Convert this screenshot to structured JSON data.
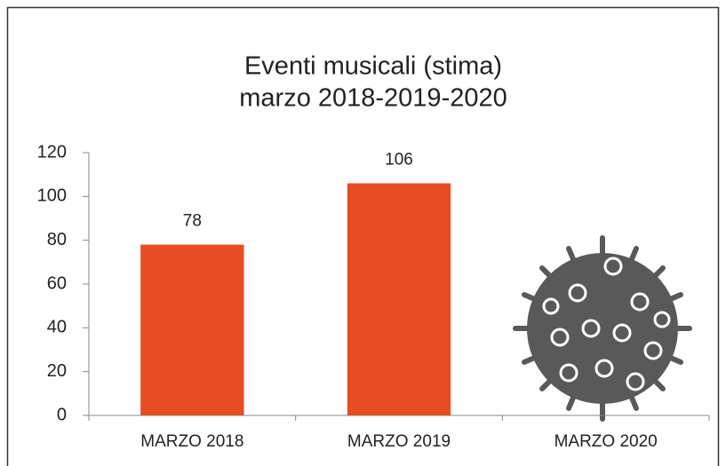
{
  "chart_data": {
    "type": "bar",
    "title": "Eventi musicali (stima)",
    "subtitle": "marzo 2018-2019-2020",
    "categories": [
      "MARZO 2018",
      "MARZO 2019",
      "MARZO 2020"
    ],
    "values": [
      78,
      106,
      null
    ],
    "color": "#e84c22",
    "ylim": [
      0,
      120
    ],
    "yticks": [
      0,
      20,
      40,
      60,
      80,
      100,
      120
    ],
    "grid": false
  }
}
